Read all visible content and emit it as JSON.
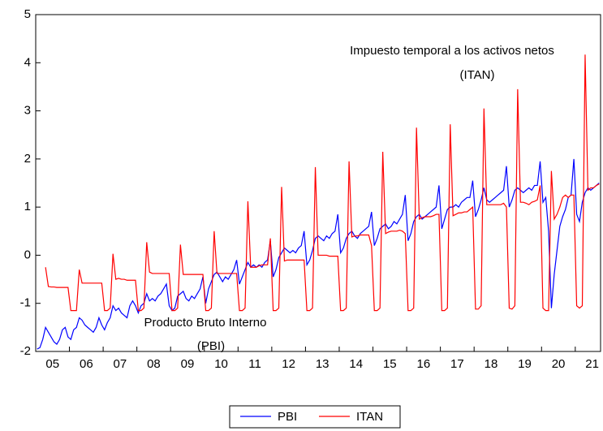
{
  "chart_data": {
    "type": "line",
    "categories": [
      null,
      null,
      null,
      null,
      null,
      null,
      "05",
      null,
      null,
      null,
      null,
      null,
      null,
      null,
      null,
      null,
      null,
      null,
      "06",
      null,
      null,
      null,
      null,
      null,
      null,
      null,
      null,
      null,
      null,
      null,
      "07",
      null,
      null,
      null,
      null,
      null,
      null,
      null,
      null,
      null,
      null,
      null,
      "08",
      null,
      null,
      null,
      null,
      null,
      null,
      null,
      null,
      null,
      null,
      null,
      "09",
      null,
      null,
      null,
      null,
      null,
      null,
      null,
      null,
      null,
      null,
      null,
      "10",
      null,
      null,
      null,
      null,
      null,
      null,
      null,
      null,
      null,
      null,
      null,
      "11",
      null,
      null,
      null,
      null,
      null,
      null,
      null,
      null,
      null,
      null,
      null,
      "12",
      null,
      null,
      null,
      null,
      null,
      null,
      null,
      null,
      null,
      null,
      null,
      "13",
      null,
      null,
      null,
      null,
      null,
      null,
      null,
      null,
      null,
      null,
      null,
      "14",
      null,
      null,
      null,
      null,
      null,
      null,
      null,
      null,
      null,
      null,
      null,
      "15",
      null,
      null,
      null,
      null,
      null,
      null,
      null,
      null,
      null,
      null,
      null,
      "16",
      null,
      null,
      null,
      null,
      null,
      null,
      null,
      null,
      null,
      null,
      null,
      "17",
      null,
      null,
      null,
      null,
      null,
      null,
      null,
      null,
      null,
      null,
      null,
      "18",
      null,
      null,
      null,
      null,
      null,
      null,
      null,
      null,
      null,
      null,
      null,
      "19",
      null,
      null,
      null,
      null,
      null,
      null,
      null,
      null,
      null,
      null,
      null,
      "20",
      null,
      null,
      null,
      null,
      null,
      null,
      null,
      null,
      null,
      null,
      null,
      "21",
      null,
      null
    ],
    "series": [
      {
        "name": "PBI",
        "color": "#0000ff",
        "values": [
          -1.95,
          -1.92,
          -1.75,
          -1.5,
          -1.6,
          -1.7,
          -1.8,
          -1.85,
          -1.75,
          -1.55,
          -1.5,
          -1.7,
          -1.75,
          -1.55,
          -1.5,
          -1.3,
          -1.35,
          -1.45,
          -1.5,
          -1.55,
          -1.6,
          -1.5,
          -1.3,
          -1.45,
          -1.55,
          -1.4,
          -1.3,
          -1.05,
          -1.15,
          -1.1,
          -1.2,
          -1.25,
          -1.3,
          -1.05,
          -0.95,
          -1.05,
          -1.2,
          -1.05,
          -1.0,
          -0.8,
          -0.95,
          -0.9,
          -0.95,
          -0.85,
          -0.8,
          -0.7,
          -0.6,
          -1.05,
          -1.15,
          -1.1,
          -0.85,
          -0.8,
          -0.75,
          -0.9,
          -0.95,
          -0.85,
          -0.9,
          -0.8,
          -0.7,
          -0.45,
          -1.0,
          -0.7,
          -0.55,
          -0.4,
          -0.35,
          -0.45,
          -0.55,
          -0.45,
          -0.5,
          -0.4,
          -0.3,
          -0.1,
          -0.6,
          -0.45,
          -0.3,
          -0.15,
          -0.25,
          -0.2,
          -0.25,
          -0.2,
          -0.25,
          -0.15,
          -0.1,
          0.3,
          -0.45,
          -0.3,
          -0.05,
          0.05,
          0.15,
          0.1,
          0.05,
          0.1,
          0.05,
          0.15,
          0.2,
          0.5,
          -0.2,
          -0.1,
          0.1,
          0.35,
          0.4,
          0.35,
          0.3,
          0.4,
          0.35,
          0.45,
          0.5,
          0.85,
          0.05,
          0.15,
          0.35,
          0.45,
          0.5,
          0.4,
          0.35,
          0.45,
          0.5,
          0.55,
          0.6,
          0.9,
          0.2,
          0.35,
          0.55,
          0.6,
          0.65,
          0.55,
          0.6,
          0.7,
          0.65,
          0.75,
          0.85,
          1.25,
          0.3,
          0.45,
          0.7,
          0.8,
          0.85,
          0.75,
          0.8,
          0.85,
          0.9,
          0.95,
          1.0,
          1.45,
          0.55,
          0.75,
          0.95,
          1.0,
          1.0,
          1.05,
          1.0,
          1.1,
          1.15,
          1.2,
          1.2,
          1.55,
          0.8,
          0.95,
          1.15,
          1.4,
          1.15,
          1.1,
          1.15,
          1.2,
          1.25,
          1.3,
          1.35,
          1.85,
          1.0,
          1.15,
          1.35,
          1.4,
          1.35,
          1.3,
          1.35,
          1.4,
          1.35,
          1.45,
          1.45,
          1.95,
          1.1,
          1.2,
          0.5,
          -1.1,
          -0.4,
          0.1,
          0.6,
          0.8,
          0.95,
          1.2,
          1.25,
          2.0,
          0.85,
          0.7,
          1.1,
          1.3,
          1.4,
          1.35,
          1.4,
          1.45,
          1.5
        ]
      },
      {
        "name": "ITAN",
        "color": "#ff0000",
        "values": [
          null,
          null,
          null,
          -0.25,
          -0.65,
          -0.66,
          -0.66,
          -0.67,
          -0.67,
          -0.67,
          -0.67,
          -0.67,
          -1.15,
          -1.15,
          -1.15,
          -0.3,
          -0.58,
          -0.58,
          -0.58,
          -0.58,
          -0.58,
          -0.58,
          -0.58,
          -0.58,
          -1.15,
          -1.15,
          -1.1,
          0.03,
          -0.5,
          -0.48,
          -0.5,
          -0.5,
          -0.52,
          -0.52,
          -0.52,
          -0.52,
          -1.15,
          -1.15,
          -1.1,
          0.27,
          -0.35,
          -0.38,
          -0.38,
          -0.38,
          -0.38,
          -0.38,
          -0.38,
          -0.38,
          -1.15,
          -1.15,
          -1.1,
          0.22,
          -0.4,
          -0.4,
          -0.4,
          -0.4,
          -0.4,
          -0.4,
          -0.4,
          -0.4,
          -1.15,
          -1.15,
          -1.1,
          0.5,
          -0.38,
          -0.38,
          -0.38,
          -0.38,
          -0.38,
          -0.38,
          -0.38,
          -0.38,
          -1.15,
          -1.15,
          -1.1,
          1.12,
          -0.25,
          -0.25,
          -0.25,
          -0.22,
          -0.2,
          -0.2,
          -0.2,
          0.35,
          -1.15,
          -1.15,
          -1.1,
          1.42,
          -0.12,
          -0.1,
          -0.1,
          -0.1,
          -0.1,
          -0.1,
          -0.1,
          -0.1,
          -1.15,
          -1.15,
          -1.1,
          1.83,
          0.0,
          0.0,
          0.0,
          0.0,
          -0.02,
          -0.02,
          -0.02,
          -0.02,
          -1.15,
          -1.15,
          -1.1,
          1.95,
          0.38,
          0.4,
          0.4,
          0.42,
          0.42,
          0.42,
          0.42,
          0.2,
          -1.15,
          -1.15,
          -1.1,
          2.15,
          0.45,
          0.48,
          0.5,
          0.5,
          0.5,
          0.52,
          0.5,
          0.45,
          -1.15,
          -1.15,
          -1.1,
          2.65,
          0.75,
          0.78,
          0.8,
          0.8,
          0.8,
          0.82,
          0.85,
          0.85,
          -1.15,
          -1.15,
          -1.1,
          2.72,
          0.82,
          0.85,
          0.88,
          0.88,
          0.9,
          0.9,
          0.95,
          1.0,
          -1.12,
          -1.12,
          -1.05,
          3.05,
          1.05,
          1.05,
          1.05,
          1.05,
          1.05,
          1.05,
          1.08,
          1.0,
          -1.1,
          -1.12,
          -1.05,
          3.45,
          1.1,
          1.1,
          1.08,
          1.05,
          1.1,
          1.12,
          1.15,
          1.45,
          -1.1,
          -1.15,
          -1.15,
          1.75,
          0.75,
          0.85,
          1.0,
          1.2,
          1.25,
          1.2,
          1.25,
          1.25,
          -1.05,
          -1.1,
          -1.05,
          4.17,
          1.35,
          1.4,
          1.4,
          1.45,
          1.48
        ]
      }
    ],
    "ylim": [
      -2,
      5
    ],
    "yticks": [
      -2,
      -1,
      0,
      1,
      2,
      3,
      4,
      5
    ],
    "grid": false,
    "annotations": [
      "Impuesto temporal a los activos netos",
      "(ITAN)",
      "Producto Bruto Interno",
      "(PBI)"
    ],
    "legend": "bottom"
  }
}
